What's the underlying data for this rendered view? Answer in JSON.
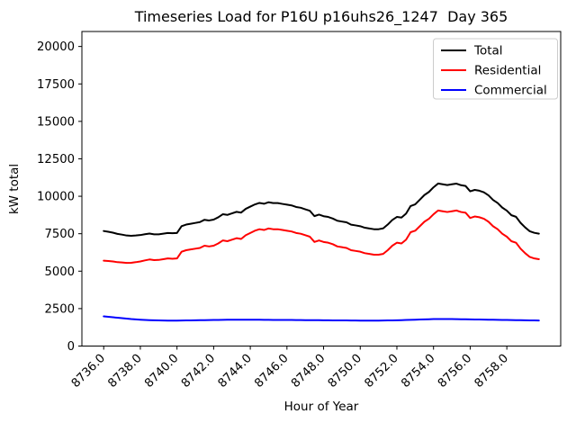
{
  "chart_data": {
    "type": "line",
    "title": "Timeseries Load for P16U p16uhs26_1247  Day 365",
    "xlabel": "Hour of Year",
    "ylabel": "kW total",
    "xlim": [
      8734.81,
      8760.94
    ],
    "ylim": [
      0,
      21000
    ],
    "grid": false,
    "legend": {
      "position": "upper right",
      "border_color": "#cccccc",
      "background": "#ffffff"
    },
    "xticks": {
      "values": [
        8736,
        8738,
        8740,
        8742,
        8744,
        8746,
        8748,
        8750,
        8752,
        8754,
        8756,
        8758
      ],
      "labels": [
        "8736.0",
        "8738.0",
        "8740.0",
        "8742.0",
        "8744.0",
        "8746.0",
        "8748.0",
        "8750.0",
        "8752.0",
        "8754.0",
        "8756.0",
        "8758.0"
      ]
    },
    "yticks": {
      "values": [
        0,
        2500,
        5000,
        7500,
        10000,
        12500,
        15000,
        17500,
        20000
      ],
      "labels": [
        "0",
        "2500",
        "5000",
        "7500",
        "10000",
        "12500",
        "15000",
        "17500",
        "20000"
      ]
    },
    "x": [
      8736,
      8736.25,
      8736.5,
      8736.75,
      8737,
      8737.25,
      8737.5,
      8737.75,
      8738,
      8738.25,
      8738.5,
      8738.75,
      8739,
      8739.25,
      8739.5,
      8739.75,
      8740,
      8740.25,
      8740.5,
      8740.75,
      8741,
      8741.25,
      8741.5,
      8741.75,
      8742,
      8742.25,
      8742.5,
      8742.75,
      8743,
      8743.25,
      8743.5,
      8743.75,
      8744,
      8744.25,
      8744.5,
      8744.75,
      8745,
      8745.25,
      8745.5,
      8745.75,
      8746,
      8746.25,
      8746.5,
      8746.75,
      8747,
      8747.25,
      8747.5,
      8747.75,
      8748,
      8748.25,
      8748.5,
      8748.75,
      8749,
      8749.25,
      8749.5,
      8749.75,
      8750,
      8750.25,
      8750.5,
      8750.75,
      8751,
      8751.25,
      8751.5,
      8751.75,
      8752,
      8752.25,
      8752.5,
      8752.75,
      8753,
      8753.25,
      8753.5,
      8753.75,
      8754,
      8754.25,
      8754.5,
      8754.75,
      8755,
      8755.25,
      8755.5,
      8755.75,
      8756,
      8756.25,
      8756.5,
      8756.75,
      8757,
      8757.25,
      8757.5,
      8757.75,
      8758,
      8758.25,
      8758.5,
      8758.75,
      8759,
      8759.25,
      8759.5,
      8759.75
    ],
    "series": [
      {
        "name": "Total",
        "color": "#000000",
        "values": [
          7680,
          7630,
          7570,
          7490,
          7440,
          7380,
          7360,
          7380,
          7410,
          7465,
          7510,
          7460,
          7460,
          7505,
          7550,
          7530,
          7550,
          8005,
          8110,
          8165,
          8220,
          8275,
          8430,
          8385,
          8440,
          8595,
          8800,
          8755,
          8860,
          8960,
          8910,
          9160,
          9310,
          9455,
          9555,
          9500,
          9600,
          9545,
          9545,
          9490,
          9440,
          9390,
          9285,
          9235,
          9130,
          9030,
          8675,
          8775,
          8670,
          8620,
          8515,
          8365,
          8310,
          8260,
          8105,
          8055,
          8000,
          7900,
          7850,
          7800,
          7800,
          7855,
          8110,
          8415,
          8620,
          8580,
          8840,
          9350,
          9460,
          9770,
          10080,
          10290,
          10600,
          10850,
          10800,
          10750,
          10800,
          10845,
          10740,
          10685,
          10330,
          10425,
          10370,
          10265,
          10060,
          9755,
          9550,
          9245,
          9040,
          8735,
          8630,
          8225,
          7920,
          7665,
          7560,
          7505
        ]
      },
      {
        "name": "Residential",
        "color": "#ff0000",
        "values": [
          5700,
          5680,
          5650,
          5600,
          5580,
          5550,
          5560,
          5600,
          5650,
          5720,
          5780,
          5740,
          5750,
          5800,
          5850,
          5830,
          5850,
          6300,
          6400,
          6450,
          6500,
          6550,
          6700,
          6650,
          6700,
          6850,
          7050,
          7000,
          7100,
          7200,
          7150,
          7400,
          7550,
          7700,
          7800,
          7750,
          7850,
          7800,
          7800,
          7750,
          7700,
          7650,
          7550,
          7500,
          7400,
          7300,
          6950,
          7050,
          6950,
          6900,
          6800,
          6650,
          6600,
          6550,
          6400,
          6350,
          6300,
          6200,
          6150,
          6100,
          6100,
          6150,
          6400,
          6700,
          6900,
          6850,
          7100,
          7600,
          7700,
          8000,
          8300,
          8500,
          8800,
          9050,
          9000,
          8950,
          9000,
          9050,
          8950,
          8900,
          8550,
          8650,
          8600,
          8500,
          8300,
          8000,
          7800,
          7500,
          7300,
          7000,
          6900,
          6500,
          6200,
          5950,
          5850,
          5800
        ]
      },
      {
        "name": "Commercial",
        "color": "#0000ff",
        "values": [
          1980,
          1950,
          1920,
          1890,
          1860,
          1830,
          1800,
          1780,
          1760,
          1745,
          1730,
          1720,
          1710,
          1705,
          1700,
          1700,
          1700,
          1705,
          1710,
          1715,
          1720,
          1725,
          1730,
          1735,
          1740,
          1745,
          1750,
          1755,
          1760,
          1760,
          1760,
          1760,
          1760,
          1755,
          1755,
          1750,
          1750,
          1745,
          1745,
          1740,
          1740,
          1740,
          1735,
          1735,
          1730,
          1730,
          1725,
          1725,
          1720,
          1720,
          1715,
          1715,
          1710,
          1710,
          1705,
          1705,
          1700,
          1700,
          1700,
          1700,
          1700,
          1705,
          1710,
          1715,
          1720,
          1730,
          1740,
          1750,
          1760,
          1770,
          1780,
          1790,
          1800,
          1800,
          1800,
          1800,
          1800,
          1795,
          1790,
          1785,
          1780,
          1775,
          1770,
          1765,
          1760,
          1755,
          1750,
          1745,
          1740,
          1735,
          1730,
          1725,
          1720,
          1715,
          1710,
          1705
        ]
      }
    ]
  }
}
